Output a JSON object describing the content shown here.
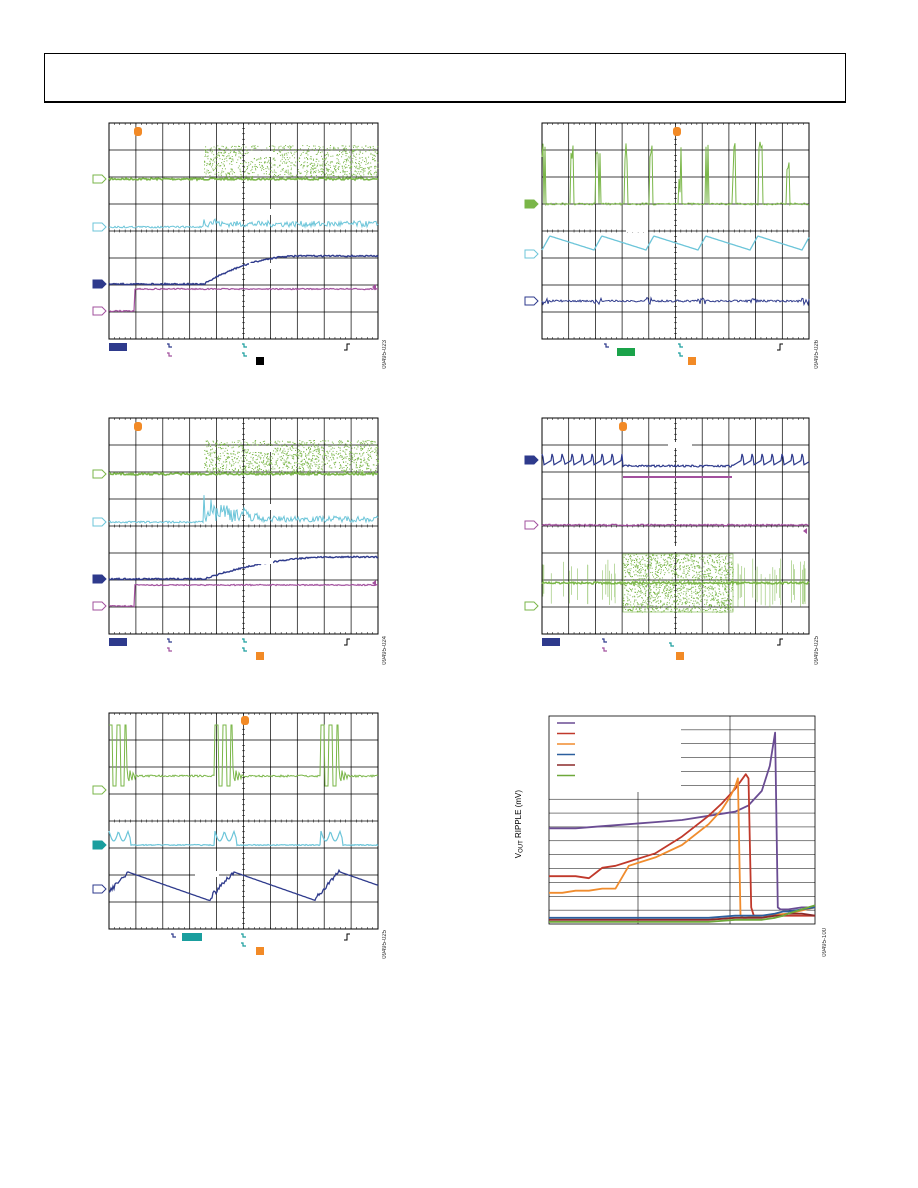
{
  "panels": [
    {
      "code": "09495-023",
      "markers": [
        "green",
        "cyan",
        "navy",
        "purple"
      ]
    },
    {
      "code": "09495-026",
      "markers": [
        "green",
        "cyan",
        "navy"
      ]
    },
    {
      "code": "09495-024",
      "markers": [
        "green",
        "cyan",
        "navy",
        "purple"
      ]
    },
    {
      "code": "09495-025",
      "markers": [
        "navy",
        "purple",
        "green"
      ]
    },
    {
      "code": "09495-025",
      "markers": [
        "green",
        "cyan",
        "navy"
      ]
    }
  ],
  "ripple_chart": {
    "code": "09495-100",
    "ylabel_main": "V",
    "ylabel_sub": "OUT",
    "ylabel_rest": " RIPPLE (mV)"
  },
  "chart_data": {
    "type": "line",
    "title": "",
    "ylabel": "VOUT RIPPLE (mV)",
    "xlabel": "",
    "xlim": [
      0,
      100
    ],
    "ylim": [
      0,
      100
    ],
    "grid": true,
    "legend_placement": "top-left",
    "series": [
      {
        "color": "#6a4c93",
        "x": [
          0,
          10,
          20,
          30,
          40,
          50,
          60,
          70,
          75,
          80,
          83,
          85,
          86,
          87,
          90,
          95,
          100
        ],
        "y": [
          46,
          46,
          47,
          48,
          49,
          50,
          52,
          54,
          57,
          64,
          76,
          92,
          8,
          7,
          7,
          8,
          8
        ]
      },
      {
        "color": "#c0392b",
        "x": [
          0,
          10,
          15,
          18,
          20,
          25,
          30,
          40,
          50,
          60,
          65,
          70,
          74,
          75,
          76,
          77,
          80,
          90,
          100
        ],
        "y": [
          23,
          23,
          22,
          25,
          27,
          28,
          30,
          34,
          42,
          52,
          58,
          65,
          72,
          70,
          8,
          4,
          4,
          4,
          4
        ]
      },
      {
        "color": "#f08c2e",
        "x": [
          0,
          5,
          10,
          15,
          20,
          25,
          30,
          40,
          50,
          60,
          65,
          68,
          70,
          71,
          72,
          73,
          74,
          80,
          90,
          100
        ],
        "y": [
          15,
          15,
          16,
          16,
          17,
          17,
          28,
          32,
          38,
          48,
          55,
          61,
          66,
          70,
          4,
          3,
          3,
          4,
          5,
          8
        ]
      },
      {
        "color": "#2b5f9e",
        "x": [
          0,
          20,
          40,
          60,
          70,
          80,
          85,
          88,
          90,
          95,
          100
        ],
        "y": [
          3,
          3,
          3,
          3,
          4,
          4,
          5,
          6,
          6,
          7,
          8
        ]
      },
      {
        "color": "#8b2a2a",
        "x": [
          0,
          20,
          40,
          60,
          70,
          80,
          85,
          88,
          90,
          95,
          100
        ],
        "y": [
          2,
          2,
          2,
          2,
          3,
          3,
          4,
          4,
          5,
          5,
          4
        ]
      },
      {
        "color": "#6ea83a",
        "x": [
          0,
          20,
          40,
          60,
          70,
          80,
          85,
          88,
          90,
          95,
          100
        ],
        "y": [
          1,
          1,
          1,
          1,
          2,
          2,
          3,
          4,
          5,
          7,
          9
        ]
      }
    ]
  },
  "colors": {
    "green": "#7ab648",
    "cyan": "#6cc5d9",
    "navy": "#2e3a8c",
    "purple": "#a2509e",
    "orange": "#f28a26",
    "teal": "#1a9e9e"
  }
}
